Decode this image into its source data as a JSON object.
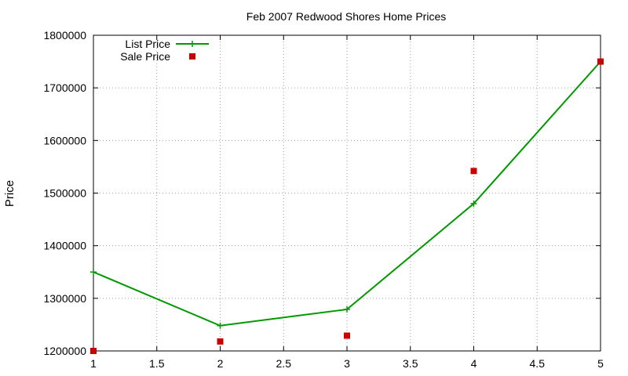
{
  "chart_data": {
    "type": "line",
    "title": "Feb 2007 Redwood Shores Home Prices",
    "xlabel": "",
    "ylabel": "Price",
    "xlim": [
      1,
      5
    ],
    "ylim": [
      1200000,
      1800000
    ],
    "x_ticks": [
      1,
      1.5,
      2,
      2.5,
      3,
      3.5,
      4,
      4.5,
      5
    ],
    "x_tick_labels": [
      "1",
      "1.5",
      "2",
      "2.5",
      "3",
      "3.5",
      "4",
      "4.5",
      "5"
    ],
    "y_ticks": [
      1200000,
      1300000,
      1400000,
      1500000,
      1600000,
      1700000,
      1800000
    ],
    "y_tick_labels": [
      "1200000",
      "1300000",
      "1400000",
      "1500000",
      "1600000",
      "1700000",
      "1800000"
    ],
    "grid": true,
    "legend_position": "top-left",
    "series": [
      {
        "name": "List Price",
        "style": "line-with-plus-markers",
        "color": "#009900",
        "x": [
          1,
          2,
          3,
          4,
          5
        ],
        "y": [
          1350000,
          1248000,
          1279000,
          1480000,
          1750000
        ]
      },
      {
        "name": "Sale Price",
        "style": "square-markers",
        "color": "#cc0000",
        "x": [
          1,
          2,
          3,
          4,
          5
        ],
        "y": [
          1200000,
          1218000,
          1229000,
          1542000,
          1750000
        ]
      }
    ]
  }
}
